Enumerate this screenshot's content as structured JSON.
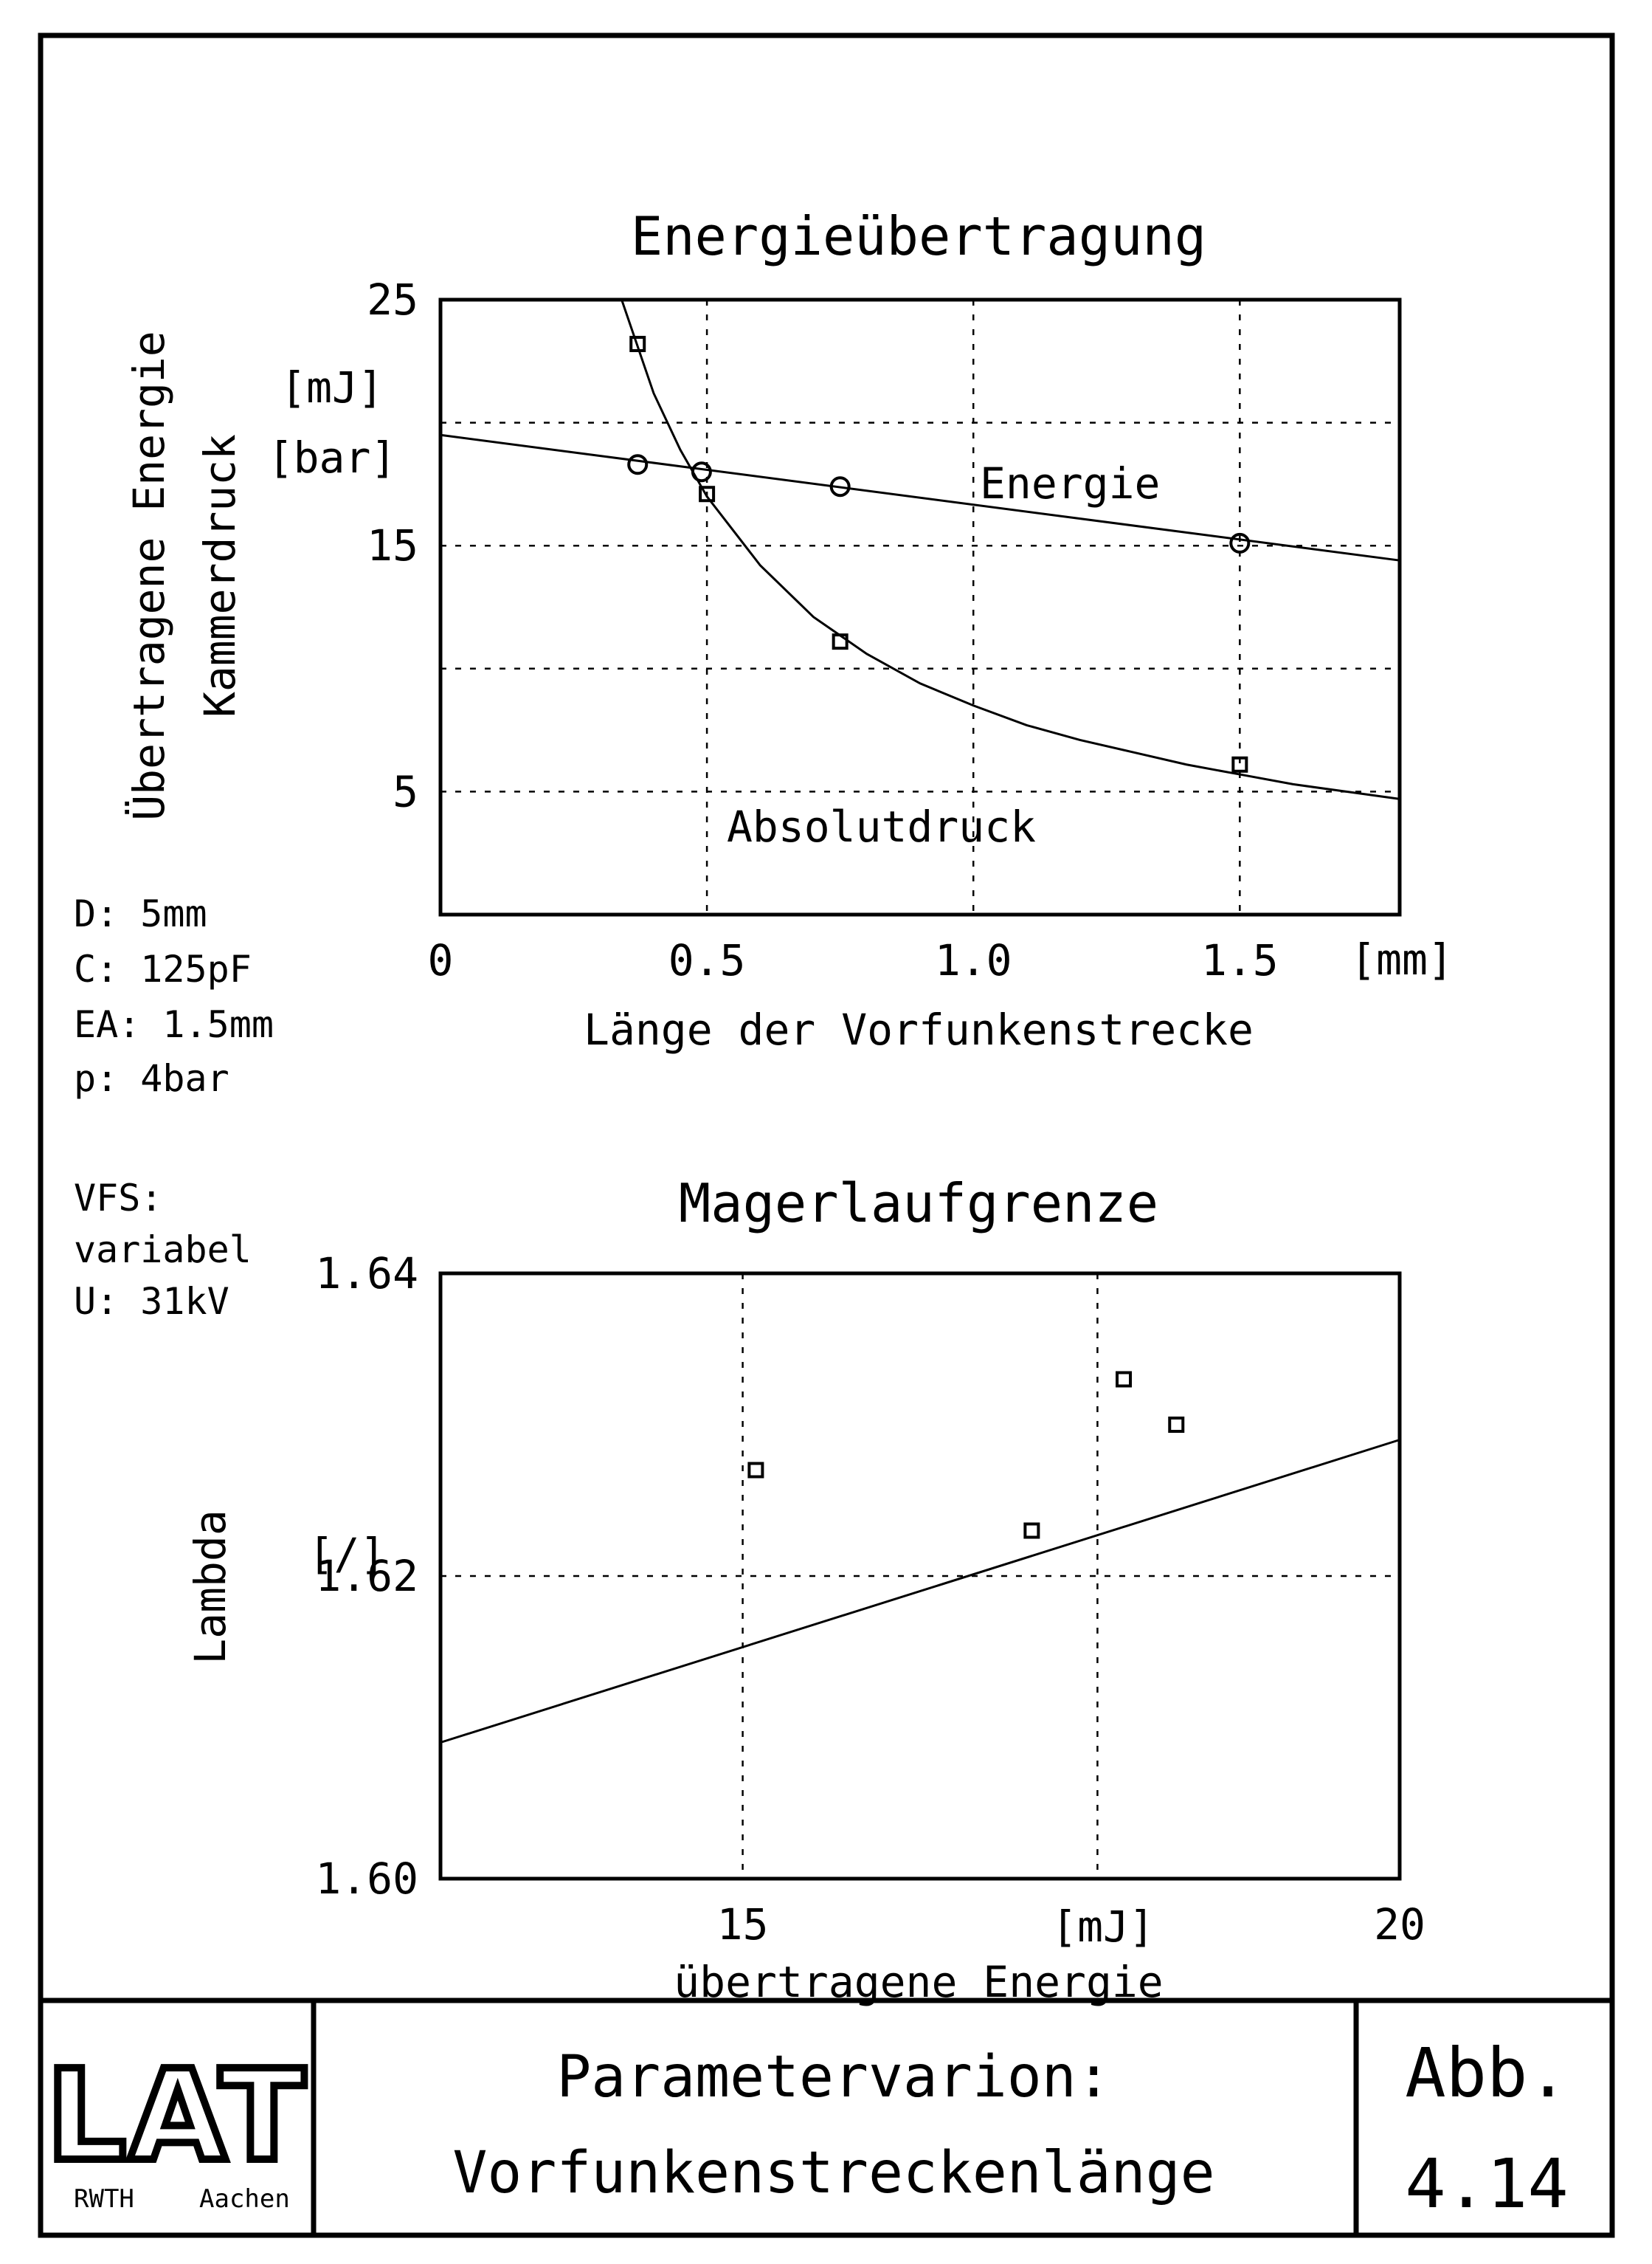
{
  "params": {
    "lines": [
      "D: 5mm",
      "C: 125pF",
      "EA: 1.5mm",
      "p: 4bar",
      "VFS:",
      "variabel",
      "U: 31kV"
    ]
  },
  "footer": {
    "logo": {
      "text": "LAT",
      "sub_left": "RWTH",
      "sub_right": "Aachen"
    },
    "caption_line1": "Parametervarion:",
    "caption_line2": "Vorfunkenstreckenlänge",
    "figure_label": "Abb.",
    "figure_number": "4.14"
  },
  "chart_data": [
    {
      "type": "scatter",
      "title": "Energieübertragung",
      "ylabel_lines": [
        "Übertragene Energie",
        "Kammerdruck"
      ],
      "y_units": [
        "[mJ]",
        "[bar]"
      ],
      "xlabel": "Länge der Vorfunkenstrecke",
      "x_unit": "[mm]",
      "xlim": [
        0,
        1.8
      ],
      "ylim": [
        0,
        25
      ],
      "x_ticks": [
        0,
        0.5,
        1.0,
        1.5
      ],
      "x_tick_labels": [
        "0",
        "0.5",
        "1.0",
        "1.5"
      ],
      "y_ticks": [
        5,
        15,
        25
      ],
      "y_tick_labels": [
        "5",
        "15",
        "25"
      ],
      "grid": true,
      "series": [
        {
          "name": "Energie",
          "marker": "circle",
          "x": [
            0.37,
            0.49,
            0.75,
            1.5
          ],
          "y": [
            18.3,
            18.0,
            17.4,
            15.1
          ],
          "fit_x": [
            0,
            1.8
          ],
          "fit_y": [
            19.5,
            14.4
          ]
        },
        {
          "name": "Absolutdruck",
          "marker": "square",
          "x": [
            0.37,
            0.5,
            0.75,
            1.5
          ],
          "y": [
            23.2,
            17.1,
            11.1,
            6.1
          ],
          "fit_x": [
            0.34,
            0.4,
            0.45,
            0.5,
            0.6,
            0.7,
            0.8,
            0.9,
            1.0,
            1.1,
            1.2,
            1.3,
            1.4,
            1.5,
            1.6,
            1.7,
            1.8
          ],
          "fit_y": [
            25.0,
            21.2,
            18.9,
            17.0,
            14.2,
            12.1,
            10.6,
            9.4,
            8.5,
            7.7,
            7.1,
            6.6,
            6.1,
            5.7,
            5.3,
            5.0,
            4.7
          ]
        }
      ],
      "annotations": [
        "Energie",
        "Absolutdruck"
      ]
    },
    {
      "type": "scatter",
      "title": "Magerlaufgrenze",
      "ylabel": "Lambda",
      "y_unit": "[/]",
      "xlabel": "übertragene Energie",
      "x_unit": "[mJ]",
      "xlim": [
        12.7,
        20
      ],
      "ylim": [
        1.6,
        1.64
      ],
      "x_ticks": [
        15,
        20
      ],
      "x_tick_labels": [
        "15",
        "20"
      ],
      "y_ticks": [
        1.6,
        1.62,
        1.64
      ],
      "y_tick_labels": [
        "1.60",
        "1.62",
        "1.64"
      ],
      "grid": true,
      "series": [
        {
          "marker": "square",
          "x": [
            15.1,
            17.2,
            17.9,
            18.3
          ],
          "y": [
            1.627,
            1.623,
            1.633,
            1.63
          ],
          "fit_x": [
            12.7,
            20
          ],
          "fit_y": [
            1.609,
            1.629
          ]
        }
      ]
    }
  ]
}
